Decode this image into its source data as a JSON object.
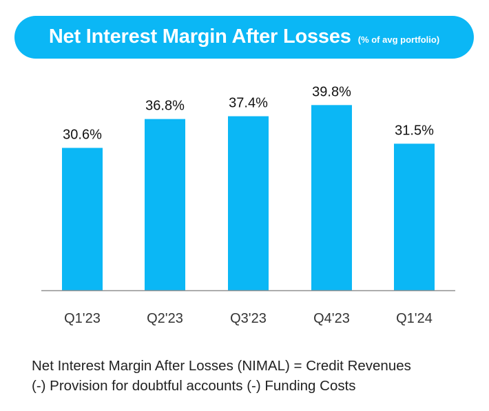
{
  "header": {
    "title": "Net Interest Margin After Losses",
    "subtitle": "(% of avg portfolio)",
    "background_color": "#0bb7f5"
  },
  "chart_data": {
    "type": "bar",
    "title": "Net Interest Margin After Losses",
    "subtitle": "(% of avg portfolio)",
    "categories": [
      "Q1'23",
      "Q2'23",
      "Q3'23",
      "Q4'23",
      "Q1'24"
    ],
    "values": [
      30.6,
      36.8,
      37.4,
      39.8,
      31.5
    ],
    "data_labels": [
      "30.6%",
      "36.8%",
      "37.4%",
      "39.8%",
      "31.5%"
    ],
    "unit": "%",
    "bar_color": "#0bb7f5",
    "ylim": [
      0,
      52
    ],
    "grid": false,
    "xlabel": "",
    "ylabel": ""
  },
  "footnote": {
    "line1": "Net Interest Margin After Losses (NIMAL) =  Credit Revenues",
    "line2": "(-) Provision for doubtful accounts (-) Funding Costs"
  }
}
